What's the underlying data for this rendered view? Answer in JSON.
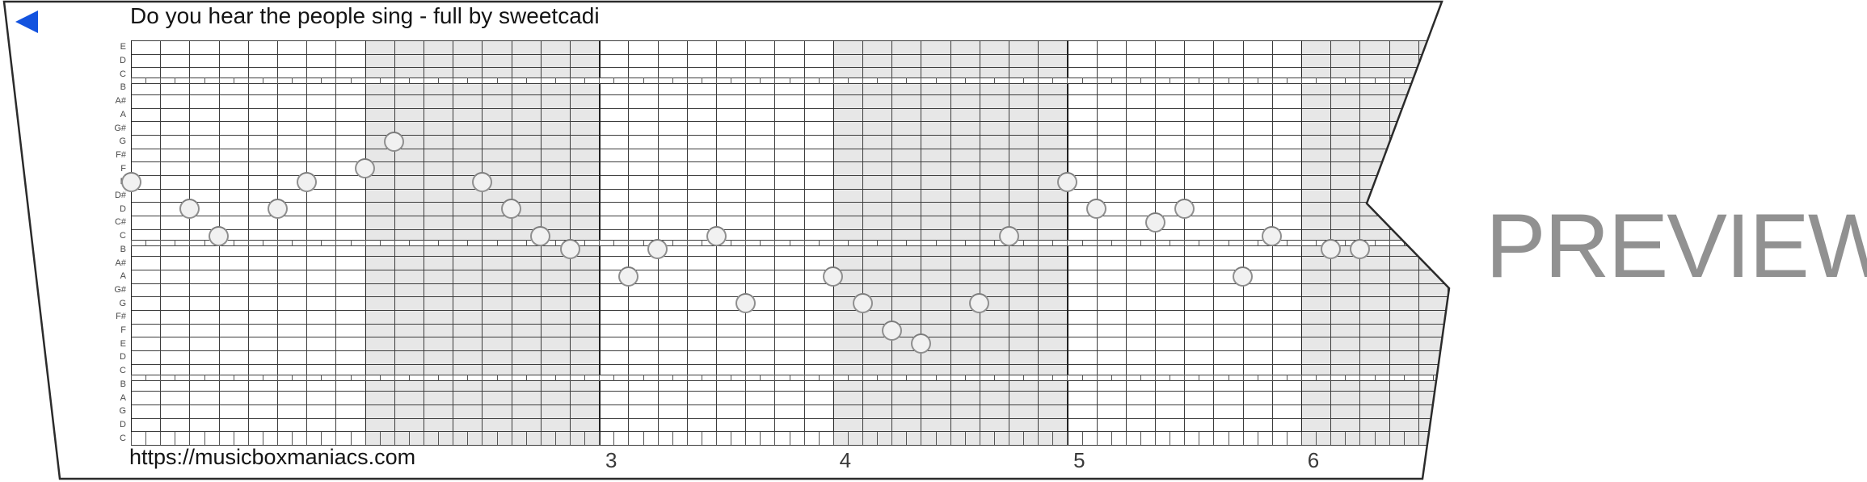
{
  "header": {
    "title": "Do you hear the people sing - full by sweetcadi"
  },
  "player": {
    "icon": "play-left-triangle"
  },
  "watermark": {
    "text": "PREVIEW"
  },
  "footer": {
    "url": "https://musicboxmaniacs.com",
    "measure_numbers": [
      "3",
      "4",
      "5",
      "6"
    ]
  },
  "colors": {
    "accent_blue": "#1353df",
    "measure_shade": "#e7e7e7",
    "grid_line": "#3c3c3c",
    "note_fill": "#f1f1f1",
    "note_stroke": "#8f8f8f",
    "preview_gray": "#919191"
  },
  "strip": {
    "row_labels": [
      "E",
      "D",
      "C",
      "B",
      "A#",
      "A",
      "G#",
      "G",
      "F#",
      "F",
      "E",
      "D#",
      "D",
      "C#",
      "C",
      "B",
      "A#",
      "A",
      "G#",
      "G",
      "F#",
      "F",
      "E",
      "D",
      "C",
      "B",
      "A",
      "G",
      "D",
      "C"
    ],
    "octave_gap_after_rows": [
      2,
      14,
      24
    ],
    "shaded_measures": [
      1,
      3,
      5
    ],
    "first_visible_measure_number": 3,
    "notes": [
      {
        "col": 0,
        "row": 10,
        "pitch": "E"
      },
      {
        "col": 2,
        "row": 12,
        "pitch": "D"
      },
      {
        "col": 3,
        "row": 14,
        "pitch": "C"
      },
      {
        "col": 5,
        "row": 12,
        "pitch": "D"
      },
      {
        "col": 6,
        "row": 10,
        "pitch": "E"
      },
      {
        "col": 8,
        "row": 9,
        "pitch": "F"
      },
      {
        "col": 9,
        "row": 7,
        "pitch": "G"
      },
      {
        "col": 12,
        "row": 10,
        "pitch": "E"
      },
      {
        "col": 13,
        "row": 12,
        "pitch": "D"
      },
      {
        "col": 14,
        "row": 14,
        "pitch": "C"
      },
      {
        "col": 15,
        "row": 15,
        "pitch": "B"
      },
      {
        "col": 17,
        "row": 17,
        "pitch": "A"
      },
      {
        "col": 18,
        "row": 15,
        "pitch": "B"
      },
      {
        "col": 20,
        "row": 14,
        "pitch": "C"
      },
      {
        "col": 21,
        "row": 19,
        "pitch": "G"
      },
      {
        "col": 24,
        "row": 17,
        "pitch": "A"
      },
      {
        "col": 25,
        "row": 19,
        "pitch": "G"
      },
      {
        "col": 26,
        "row": 21,
        "pitch": "F"
      },
      {
        "col": 27,
        "row": 22,
        "pitch": "E"
      },
      {
        "col": 29,
        "row": 19,
        "pitch": "G"
      },
      {
        "col": 30,
        "row": 14,
        "pitch": "C"
      },
      {
        "col": 32,
        "row": 10,
        "pitch": "E"
      },
      {
        "col": 33,
        "row": 12,
        "pitch": "D"
      },
      {
        "col": 35,
        "row": 13,
        "pitch": "C#"
      },
      {
        "col": 36,
        "row": 12,
        "pitch": "D"
      },
      {
        "col": 38,
        "row": 17,
        "pitch": "A"
      },
      {
        "col": 39,
        "row": 14,
        "pitch": "C"
      },
      {
        "col": 41,
        "row": 15,
        "pitch": "B"
      },
      {
        "col": 42,
        "row": 15,
        "pitch": "B"
      }
    ]
  }
}
